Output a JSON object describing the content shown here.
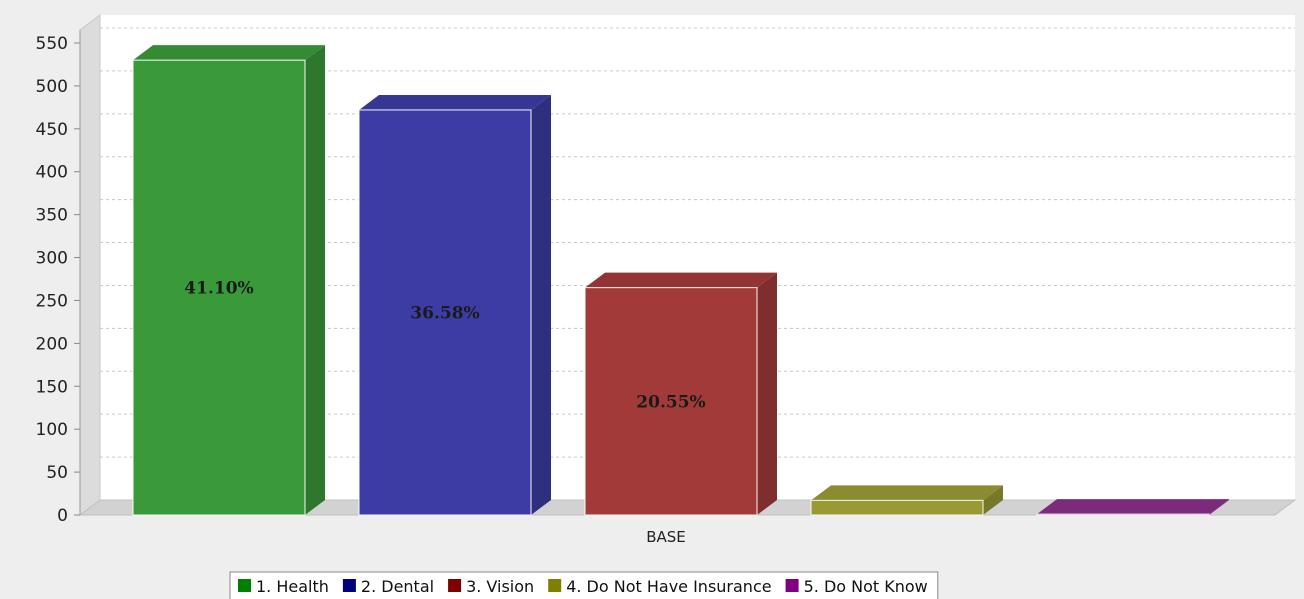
{
  "chart_data": {
    "type": "bar",
    "title": "",
    "xlabel": "",
    "ylabel": "",
    "categories": [
      "BASE"
    ],
    "ylim": [
      0,
      550
    ],
    "yticks": [
      0,
      50,
      100,
      150,
      200,
      250,
      300,
      350,
      400,
      450,
      500,
      550
    ],
    "grid": true,
    "legend_position": "bottom",
    "series": [
      {
        "name": "1. Health",
        "values": [
          530
        ],
        "label": "41.10%",
        "color": "#3a9a3a"
      },
      {
        "name": "2. Dental",
        "values": [
          472
        ],
        "label": "36.58%",
        "color": "#3c3ca4"
      },
      {
        "name": "3. Vision",
        "values": [
          265
        ],
        "label": "20.55%",
        "color": "#a33a3a"
      },
      {
        "name": "4. Do Not Have Insurance",
        "values": [
          17
        ],
        "label": "",
        "color": "#9a9a35"
      },
      {
        "name": "5. Do Not Know",
        "values": [
          1
        ],
        "label": "",
        "color": "#8a2f8a"
      }
    ],
    "legend_colors": [
      "#008000",
      "#000080",
      "#800000",
      "#808000",
      "#800080"
    ]
  }
}
